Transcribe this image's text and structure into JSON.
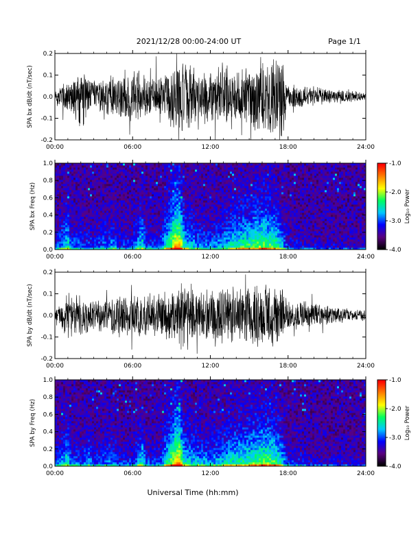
{
  "header": {
    "title": "2021/12/28  00:00-24:00 UT",
    "page": "Page 1/1"
  },
  "xlabel": "Universal Time (hh:mm)",
  "chart_data": [
    {
      "type": "line",
      "ylabel": "SPA bx dB/dt (nT/sec)",
      "xlim": [
        0,
        24
      ],
      "ylim": [
        -0.2,
        0.2
      ],
      "x_tick_labels": [
        "00:00",
        "06:00",
        "12:00",
        "18:00",
        "24:00"
      ],
      "y_tick_labels": [
        "-0.2",
        "-0.1",
        "0.0",
        "0.1",
        "0.2"
      ],
      "color": "#000000",
      "series": [
        {
          "x": [
            0,
            1,
            2,
            3,
            4,
            5,
            6,
            7,
            8,
            9,
            9.5,
            10,
            11,
            12,
            13,
            14,
            15,
            16,
            17,
            17.5,
            18,
            19,
            20,
            21,
            22,
            23,
            24
          ],
          "envelope": [
            0.04,
            0.09,
            0.16,
            0.08,
            0.1,
            0.12,
            0.12,
            0.13,
            0.1,
            0.15,
            0.2,
            0.2,
            0.12,
            0.14,
            0.17,
            0.15,
            0.17,
            0.18,
            0.2,
            0.2,
            0.06,
            0.07,
            0.05,
            0.04,
            0.03,
            0.03,
            0.02
          ]
        }
      ]
    },
    {
      "type": "heatmap",
      "ylabel": "SPA bx Freq (Hz)",
      "xlim": [
        0,
        24
      ],
      "ylim": [
        0,
        1.0
      ],
      "x_tick_labels": [
        "00:00",
        "06:00",
        "12:00",
        "18:00",
        "24:00"
      ],
      "y_tick_labels": [
        "0.0",
        "0.2",
        "0.4",
        "0.6",
        "0.8",
        "1.0"
      ],
      "colorbar": {
        "label": "Log₁₀ Power",
        "range": [
          -4.0,
          -1.0
        ],
        "tick_labels": [
          "-4.0",
          "-3.0",
          "-2.0",
          "-1.0"
        ],
        "colors": [
          "#000000",
          "#5a0080",
          "#0000ff",
          "#00c8ff",
          "#00ff60",
          "#ffff00",
          "#ff8000",
          "#ff0000"
        ]
      },
      "activity_profile": {
        "x": [
          0,
          1,
          1.2,
          2,
          3,
          4.5,
          5,
          6,
          6.8,
          7,
          8,
          9.3,
          9.6,
          10,
          11,
          12,
          13,
          14,
          15,
          16,
          17,
          17.5,
          18,
          20,
          24
        ],
        "level": [
          0.15,
          0.55,
          0.3,
          0.25,
          0.2,
          0.35,
          0.2,
          0.2,
          0.55,
          0.25,
          0.2,
          0.9,
          0.95,
          0.5,
          0.35,
          0.3,
          0.4,
          0.55,
          0.6,
          0.7,
          0.6,
          0.45,
          0.15,
          0.1,
          0.08
        ]
      }
    },
    {
      "type": "line",
      "ylabel": "SPA by dB/dt (nT/sec)",
      "xlim": [
        0,
        24
      ],
      "ylim": [
        -0.2,
        0.2
      ],
      "x_tick_labels": [
        "00:00",
        "06:00",
        "12:00",
        "18:00",
        "24:00"
      ],
      "y_tick_labels": [
        "-0.2",
        "-0.1",
        "0.0",
        "0.1",
        "0.2"
      ],
      "color": "#000000",
      "series": [
        {
          "x": [
            0,
            1,
            2,
            3,
            4,
            5,
            6,
            7,
            8,
            9,
            9.5,
            10,
            11,
            12,
            13,
            14,
            15,
            16,
            17,
            17.5,
            18,
            19,
            20,
            21,
            22,
            23,
            24
          ],
          "envelope": [
            0.03,
            0.12,
            0.1,
            0.08,
            0.09,
            0.11,
            0.12,
            0.12,
            0.11,
            0.14,
            0.2,
            0.2,
            0.12,
            0.13,
            0.15,
            0.14,
            0.16,
            0.18,
            0.17,
            0.15,
            0.08,
            0.07,
            0.06,
            0.05,
            0.04,
            0.03,
            0.03
          ]
        }
      ]
    },
    {
      "type": "heatmap",
      "ylabel": "SPA by Freq (Hz)",
      "xlim": [
        0,
        24
      ],
      "ylim": [
        0,
        1.0
      ],
      "x_tick_labels": [
        "00:00",
        "06:00",
        "12:00",
        "18:00",
        "24:00"
      ],
      "y_tick_labels": [
        "0.0",
        "0.2",
        "0.4",
        "0.6",
        "0.8",
        "1.0"
      ],
      "colorbar": {
        "label": "Log₁₀ Power",
        "range": [
          -4.0,
          -1.0
        ],
        "tick_labels": [
          "-4.0",
          "-3.0",
          "-2.0",
          "-1.0"
        ],
        "colors": [
          "#000000",
          "#5a0080",
          "#0000ff",
          "#00c8ff",
          "#00ff60",
          "#ffff00",
          "#ff8000",
          "#ff0000"
        ]
      },
      "activity_profile": {
        "x": [
          0,
          1,
          1.2,
          2,
          2.6,
          3,
          4.5,
          5,
          6,
          6.8,
          7,
          8,
          9.3,
          9.6,
          10,
          11,
          12,
          13,
          14,
          15,
          16,
          17,
          17.5,
          18,
          20,
          24
        ],
        "level": [
          0.15,
          0.55,
          0.3,
          0.25,
          0.4,
          0.2,
          0.35,
          0.2,
          0.2,
          0.55,
          0.25,
          0.2,
          0.9,
          0.95,
          0.5,
          0.4,
          0.35,
          0.45,
          0.55,
          0.6,
          0.7,
          0.65,
          0.5,
          0.2,
          0.12,
          0.08
        ]
      }
    }
  ]
}
